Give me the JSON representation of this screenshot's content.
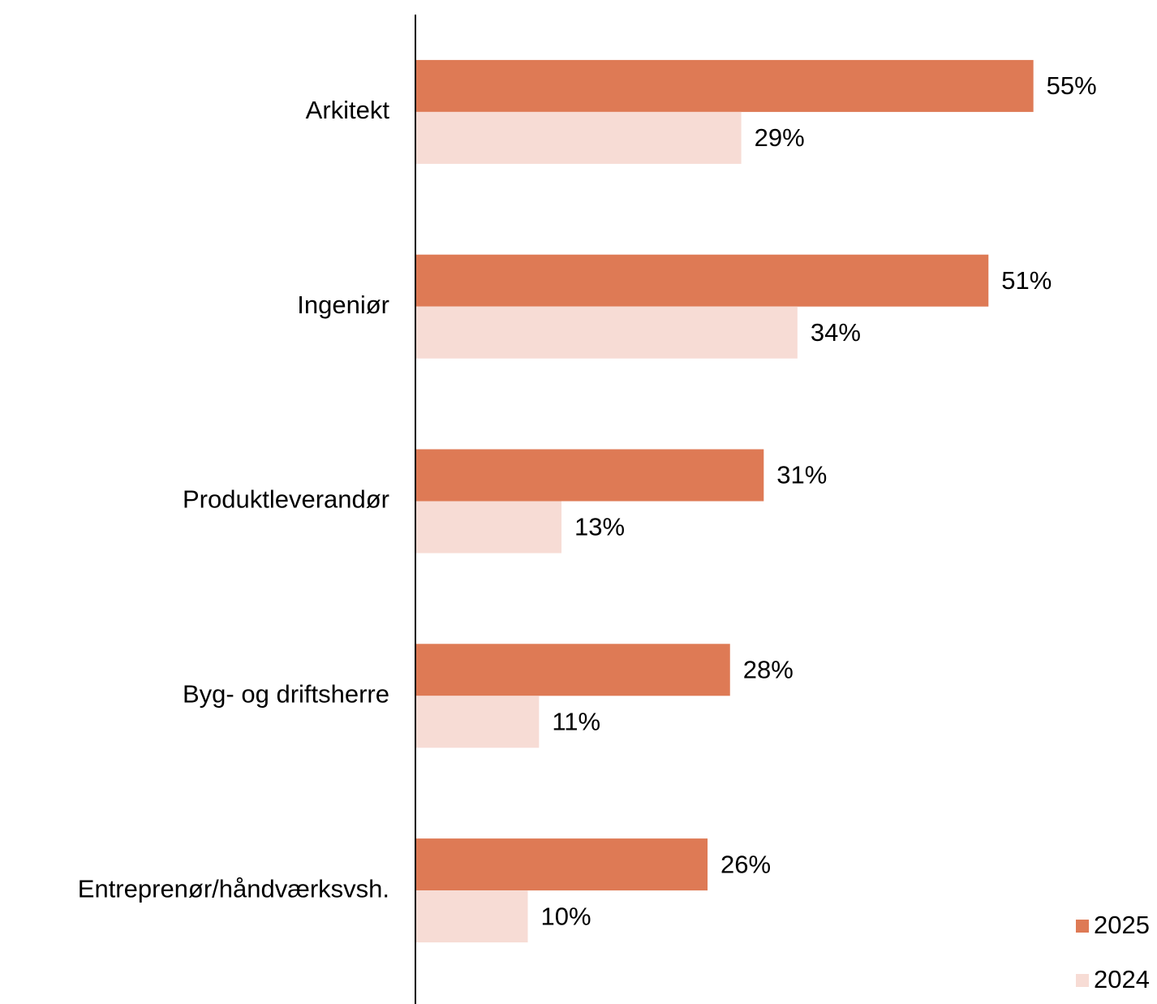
{
  "chart_data": {
    "type": "hbar",
    "categories": [
      "Arkitekt",
      "Ingeniør",
      "Produktleverandør",
      "Byg- og driftsherre",
      "Entreprenør/håndværksvsh."
    ],
    "series": [
      {
        "name": "2025",
        "color": "#de7a55",
        "values": [
          55,
          51,
          31,
          28,
          26
        ],
        "value_labels": [
          "55%",
          "51%",
          "31%",
          "28%",
          "26%"
        ]
      },
      {
        "name": "2024",
        "color": "#f7dcd5",
        "values": [
          29,
          34,
          13,
          11,
          10
        ],
        "value_labels": [
          "29%",
          "34%",
          "13%",
          "11%",
          "10%"
        ]
      }
    ],
    "xlim": [
      0,
      66
    ],
    "legend": "lower right"
  }
}
